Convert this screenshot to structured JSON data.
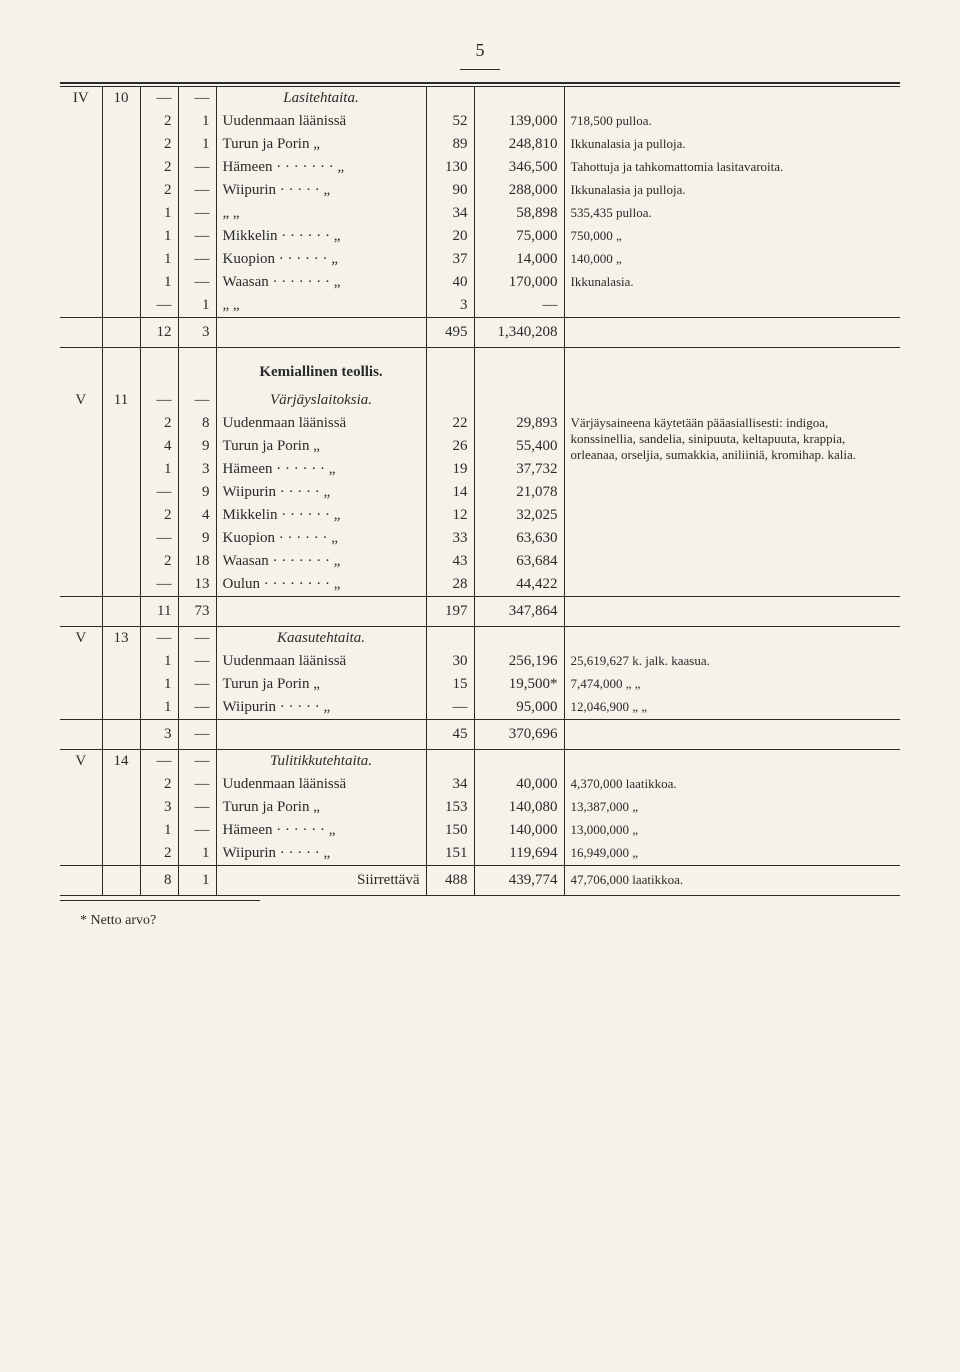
{
  "page_number": "5",
  "footnote": "* Netto arvo?",
  "sections": [
    {
      "roman": "IV",
      "num": "10",
      "title_italic": "Lasitehtaita.",
      "rows": [
        {
          "c3": "2",
          "c4": "1",
          "c5": "Uudenmaan läänissä",
          "c6": "52",
          "c7": "139,000",
          "c8": "718,500 pulloa."
        },
        {
          "c3": "2",
          "c4": "1",
          "c5": "Turun ja Porin    „",
          "c6": "89",
          "c7": "248,810",
          "c8": "Ikkunalasia ja pulloja."
        },
        {
          "c3": "2",
          "c4": "—",
          "c5": "Hämeen · · · · · · ·  „",
          "c6": "130",
          "c7": "346,500",
          "c8": "Tahottuja ja tahkomattomia lasitavaroita."
        },
        {
          "c3": "2",
          "c4": "—",
          "c5": "Wiipurin · · · · ·   „",
          "c6": "90",
          "c7": "288,000",
          "c8": "Ikkunalasia ja pulloja."
        },
        {
          "c3": "1",
          "c4": "—",
          "c5": "      „              „",
          "c6": "34",
          "c7": "58,898",
          "c8": "535,435 pulloa."
        },
        {
          "c3": "1",
          "c4": "—",
          "c5": "Mikkelin · · · · · ·  „",
          "c6": "20",
          "c7": "75,000",
          "c8": "750,000      „"
        },
        {
          "c3": "1",
          "c4": "—",
          "c5": "Kuopion · · · · · ·  „",
          "c6": "37",
          "c7": "14,000",
          "c8": "140,000      „"
        },
        {
          "c3": "1",
          "c4": "—",
          "c5": "Waasan · · · · · · ·  „",
          "c6": "40",
          "c7": "170,000",
          "c8": "Ikkunalasia."
        },
        {
          "c3": "—",
          "c4": "1",
          "c5": "      „              „",
          "c6": "3",
          "c7": "—",
          "c8": ""
        }
      ],
      "sum": {
        "c3": "12",
        "c4": "3",
        "c6": "495",
        "c7": "1,340,208"
      }
    },
    {
      "roman": "V",
      "num": "11",
      "title_bold": "Kemiallinen teollis.",
      "title_italic": "Värjäyslaitoksia.",
      "rows": [
        {
          "c3": "2",
          "c4": "8",
          "c5": "Uudenmaan läänissä",
          "c6": "22",
          "c7": "29,893",
          "c8": "Värjäysaineena käytetään pääasiallisesti: indigoa, konssinellia, sandelia, sinipuuta, keltapuuta, krappia, orleanaa, orseljia, sumakkia, aniliiniä, kromihap. kalia."
        },
        {
          "c3": "4",
          "c4": "9",
          "c5": "Turun ja Porin    „",
          "c6": "26",
          "c7": "55,400",
          "c8": ""
        },
        {
          "c3": "1",
          "c4": "3",
          "c5": "Hämeen · · · · · ·   „",
          "c6": "19",
          "c7": "37,732",
          "c8": ""
        },
        {
          "c3": "—",
          "c4": "9",
          "c5": "Wiipurin · · · · ·   „",
          "c6": "14",
          "c7": "21,078",
          "c8": ""
        },
        {
          "c3": "2",
          "c4": "4",
          "c5": "Mikkelin · · · · · ·  „",
          "c6": "12",
          "c7": "32,025",
          "c8": ""
        },
        {
          "c3": "—",
          "c4": "9",
          "c5": "Kuopion · · · · · ·  „",
          "c6": "33",
          "c7": "63,630",
          "c8": ""
        },
        {
          "c3": "2",
          "c4": "18",
          "c5": "Waasan · · · · · · ·  „",
          "c6": "43",
          "c7": "63,684",
          "c8": ""
        },
        {
          "c3": "—",
          "c4": "13",
          "c5": "Oulun · · · · · · · ·  „",
          "c6": "28",
          "c7": "44,422",
          "c8": ""
        }
      ],
      "sum": {
        "c3": "11",
        "c4": "73",
        "c6": "197",
        "c7": "347,864"
      }
    },
    {
      "roman": "V",
      "num": "13",
      "title_italic": "Kaasutehtaita.",
      "rows": [
        {
          "c3": "1",
          "c4": "—",
          "c5": "Uudenmaan läänissä",
          "c6": "30",
          "c7": "256,196",
          "c8": "25,619,627 k. jalk. kaasua."
        },
        {
          "c3": "1",
          "c4": "—",
          "c5": "Turun ja Porin   „",
          "c6": "15",
          "c7": "19,500*",
          "c8": "7,474,000    „        „"
        },
        {
          "c3": "1",
          "c4": "—",
          "c5": "Wiipurin · · · · ·  „",
          "c6": "—",
          "c7": "95,000",
          "c8": "12,046,900    „        „"
        }
      ],
      "sum": {
        "c3": "3",
        "c4": "—",
        "c6": "45",
        "c7": "370,696"
      }
    },
    {
      "roman": "V",
      "num": "14",
      "title_italic": "Tulitikkutehtaita.",
      "rows": [
        {
          "c3": "2",
          "c4": "—",
          "c5": "Uudenmaan läänissä",
          "c6": "34",
          "c7": "40,000",
          "c8": "4,370,000 laatikkoa."
        },
        {
          "c3": "3",
          "c4": "—",
          "c5": "Turun ja Porin    „",
          "c6": "153",
          "c7": "140,080",
          "c8": "13,387,000        „"
        },
        {
          "c3": "1",
          "c4": "—",
          "c5": "Hämeen · · · · · ·   „",
          "c6": "150",
          "c7": "140,000",
          "c8": "13,000,000        „"
        },
        {
          "c3": "2",
          "c4": "1",
          "c5": "Wiipurin · · · · ·   „",
          "c6": "151",
          "c7": "119,694",
          "c8": "16,949,000        „"
        }
      ],
      "sum": {
        "c3": "8",
        "c4": "1",
        "c5": "Siirrettävä",
        "c6": "488",
        "c7": "439,774",
        "c8": "47,706,000 laatikkoa."
      }
    }
  ]
}
